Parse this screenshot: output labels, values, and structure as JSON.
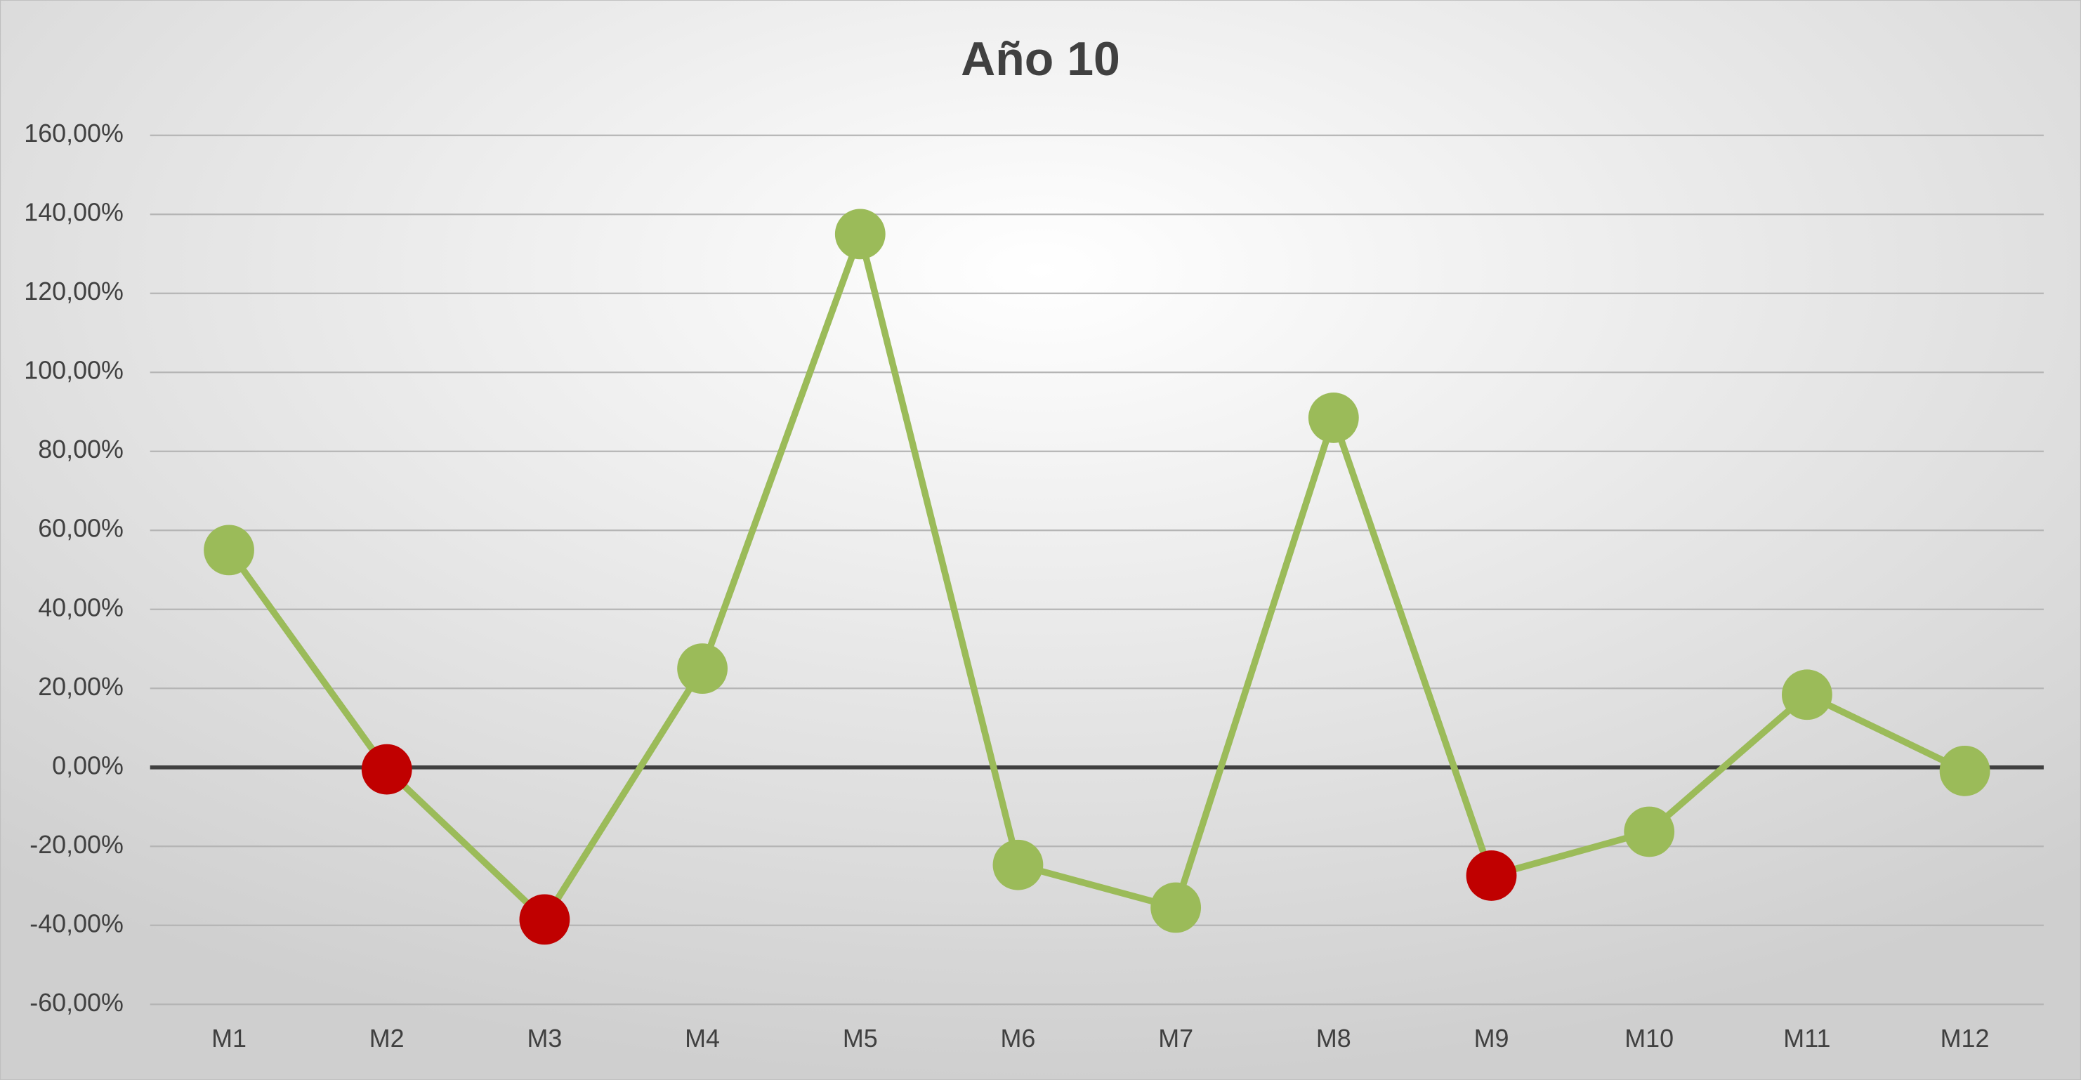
{
  "chart_data": {
    "type": "line",
    "title": "Año 10",
    "categories": [
      "M1",
      "M2",
      "M3",
      "M4",
      "M5",
      "M6",
      "M7",
      "M8",
      "M9",
      "M10",
      "M11",
      "M12"
    ],
    "values": [
      55,
      -0.5,
      -38.5,
      25,
      135,
      -24.7,
      -35.5,
      88.5,
      -27.4,
      -16.3,
      18.4,
      -0.9
    ],
    "color": "#9bbb59",
    "point_colors": [
      "#9bbb59",
      "#c00000",
      "#c00000",
      "#9bbb59",
      "#9bbb59",
      "#9bbb59",
      "#9bbb59",
      "#9bbb59",
      "#c00000",
      "#9bbb59",
      "#9bbb59",
      "#9bbb59"
    ],
    "ylim": [
      -60,
      160
    ],
    "yticks": [
      {
        "value": -60,
        "label": "-60,00%"
      },
      {
        "value": -40,
        "label": "-40,00%"
      },
      {
        "value": -20,
        "label": "-20,00%"
      },
      {
        "value": 0,
        "label": "0,00%"
      },
      {
        "value": 20,
        "label": "20,00%"
      },
      {
        "value": 40,
        "label": "40,00%"
      },
      {
        "value": 60,
        "label": "60,00%"
      },
      {
        "value": 80,
        "label": "80,00%"
      },
      {
        "value": 100,
        "label": "100,00%"
      },
      {
        "value": 120,
        "label": "120,00%"
      },
      {
        "value": 140,
        "label": "140,00%"
      },
      {
        "value": 160,
        "label": "160,00%"
      }
    ],
    "grid": true
  }
}
